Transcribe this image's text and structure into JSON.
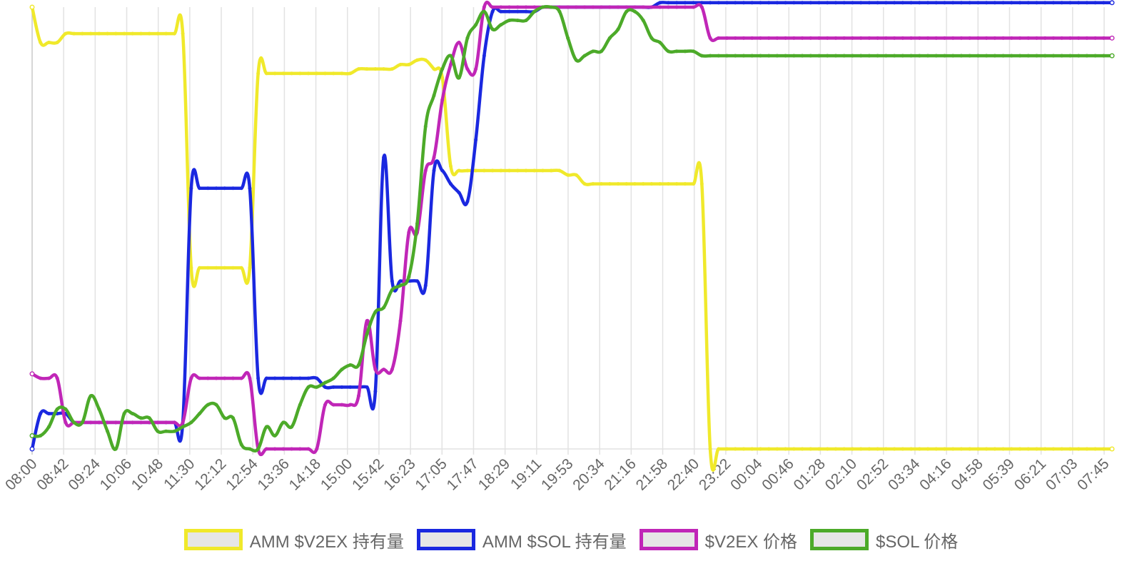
{
  "chart_data": {
    "type": "line",
    "title": "",
    "xlabel": "",
    "ylabel": "",
    "y_axis_visible": false,
    "grid": "vertical",
    "legend_position": "bottom",
    "x_tick_labels": [
      "08:00",
      "08:42",
      "09:24",
      "10:06",
      "10:48",
      "11:30",
      "12:12",
      "12:54",
      "13:36",
      "14:18",
      "15:00",
      "15:42",
      "16:23",
      "17:05",
      "17:47",
      "18:29",
      "19:11",
      "19:53",
      "20:34",
      "21:16",
      "21:58",
      "22:40",
      "23:22",
      "00:04",
      "00:46",
      "01:28",
      "02:10",
      "02:52",
      "03:34",
      "04:16",
      "04:58",
      "05:39",
      "06:21",
      "07:03",
      "07:45"
    ],
    "ylim": [
      0,
      100
    ],
    "series": [
      {
        "name": "AMM $V2EX 持有量",
        "color": "#f0e92b",
        "values": [
          100,
          92,
          92,
          92,
          94,
          94,
          94,
          94,
          94,
          94,
          94,
          94,
          94,
          94,
          94,
          94,
          94,
          94,
          94,
          41,
          41,
          41,
          41,
          41,
          41,
          41,
          41,
          85,
          85,
          85,
          85,
          85,
          85,
          85,
          85,
          85,
          85,
          85,
          85,
          86,
          86,
          86,
          86,
          86,
          87,
          87,
          88,
          88,
          86,
          84,
          64,
          63,
          63,
          63,
          63,
          63,
          63,
          63,
          63,
          63,
          63,
          63,
          63,
          63,
          62,
          62,
          60,
          60,
          60,
          60,
          60,
          60,
          60,
          60,
          60,
          60,
          60,
          60,
          60,
          60,
          60,
          0,
          0,
          0,
          0,
          0,
          0,
          0,
          0,
          0,
          0,
          0,
          0,
          0,
          0,
          0,
          0,
          0,
          0,
          0,
          0,
          0,
          0,
          0,
          0,
          0,
          0,
          0,
          0,
          0,
          0,
          0,
          0,
          0,
          0,
          0,
          0,
          0,
          0,
          0,
          0,
          0,
          0,
          0,
          0,
          0,
          0,
          0,
          0,
          0
        ]
      },
      {
        "name": "AMM $SOL 持有量",
        "color": "#1a28e0",
        "values": [
          0,
          8,
          8,
          8,
          8,
          6,
          6,
          6,
          6,
          6,
          6,
          6,
          6,
          6,
          6,
          6,
          6,
          6,
          6,
          59,
          59,
          59,
          59,
          59,
          59,
          59,
          59,
          16,
          16,
          16,
          16,
          16,
          16,
          16,
          16,
          14,
          14,
          14,
          14,
          14,
          14,
          13,
          66,
          38,
          38,
          38,
          38,
          37,
          63,
          63,
          60,
          58,
          56,
          70,
          89,
          99,
          99,
          99,
          99,
          99,
          99,
          100,
          100,
          100,
          100,
          100,
          100,
          100,
          100,
          100,
          100,
          100,
          100,
          100,
          100,
          101,
          101,
          101,
          101,
          101,
          101,
          101,
          101,
          101,
          101,
          101,
          101,
          101,
          101,
          101,
          101,
          101,
          101,
          101,
          101,
          101,
          101,
          101,
          101,
          101,
          101,
          101,
          101,
          101,
          101,
          101,
          101,
          101,
          101,
          101,
          101,
          101,
          101,
          101,
          101,
          101,
          101,
          101,
          101,
          101,
          101,
          101,
          101,
          101,
          101,
          101,
          101,
          101,
          101,
          101
        ]
      },
      {
        "name": "$V2EX 价格",
        "color": "#c026b7",
        "values": [
          17,
          16,
          16,
          16,
          6,
          6,
          6,
          6,
          6,
          6,
          6,
          6,
          6,
          6,
          6,
          6,
          6,
          6,
          6,
          16,
          16,
          16,
          16,
          16,
          16,
          16,
          16,
          0,
          0,
          0,
          0,
          0,
          0,
          0,
          0,
          10,
          10,
          10,
          10,
          12,
          29,
          18,
          18,
          18,
          29,
          49,
          49,
          63,
          66,
          79,
          87,
          92,
          86,
          86,
          100,
          100,
          100,
          100,
          100,
          100,
          100,
          100,
          100,
          100,
          100,
          100,
          100,
          100,
          100,
          100,
          100,
          100,
          100,
          100,
          100,
          100,
          100,
          100,
          100,
          100,
          100,
          93,
          93,
          93,
          93,
          93,
          93,
          93,
          93,
          93,
          93,
          93,
          93,
          93,
          93,
          93,
          93,
          93,
          93,
          93,
          93,
          93,
          93,
          93,
          93,
          93,
          93,
          93,
          93,
          93,
          93,
          93,
          93,
          93,
          93,
          93,
          93,
          93,
          93,
          93,
          93,
          93,
          93,
          93,
          93,
          93,
          93,
          93,
          93,
          93
        ]
      },
      {
        "name": "$SOL 价格",
        "color": "#4caa29",
        "values": [
          3,
          3,
          5,
          9,
          9,
          6,
          6,
          12,
          9,
          4,
          0,
          8,
          8,
          7,
          7,
          4,
          4,
          4,
          5,
          6,
          8,
          10,
          10,
          7,
          7,
          1,
          0,
          0,
          5,
          3,
          6,
          5,
          10,
          14,
          14,
          15,
          16,
          18,
          19,
          19,
          26,
          31,
          32,
          36,
          37,
          39,
          51,
          73,
          80,
          86,
          89,
          84,
          93,
          96,
          99,
          95,
          96,
          97,
          97,
          97,
          99,
          100,
          100,
          99,
          93,
          88,
          89,
          90,
          90,
          93,
          95,
          99,
          99,
          97,
          93,
          92,
          90,
          90,
          90,
          90,
          89,
          89,
          89,
          89,
          89,
          89,
          89,
          89,
          89,
          89,
          89,
          89,
          89,
          89,
          89,
          89,
          89,
          89,
          89,
          89,
          89,
          89,
          89,
          89,
          89,
          89,
          89,
          89,
          89,
          89,
          89,
          89,
          89,
          89,
          89,
          89,
          89,
          89,
          89,
          89,
          89,
          89,
          89,
          89,
          89,
          89,
          89,
          89,
          89,
          89
        ]
      }
    ]
  }
}
